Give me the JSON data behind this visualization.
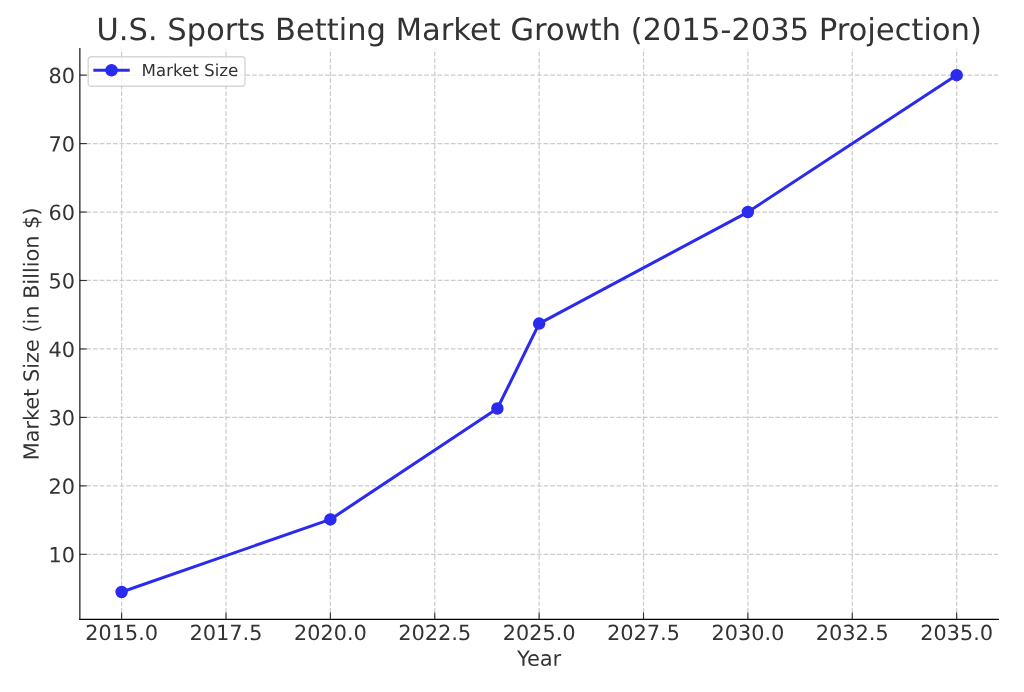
{
  "chart_data": {
    "type": "line",
    "title": "U.S. Sports Betting Market Growth (2015-2035 Projection)",
    "xlabel": "Year",
    "ylabel": "Market Size (in Billion $)",
    "x": [
      2015,
      2020,
      2024,
      2025,
      2030,
      2035
    ],
    "series": [
      {
        "name": "Market Size",
        "color": "#2b2bf0",
        "values": [
          4.5,
          15.1,
          31.3,
          43.7,
          60,
          80
        ]
      }
    ],
    "xlim": [
      2014,
      2036
    ],
    "xticks": [
      {
        "value": 2015,
        "label": "2015.0"
      },
      {
        "value": 2017.5,
        "label": "2017.5"
      },
      {
        "value": 2020,
        "label": "2020.0"
      },
      {
        "value": 2022.5,
        "label": "2022.5"
      },
      {
        "value": 2025,
        "label": "2025.0"
      },
      {
        "value": 2027.5,
        "label": "2027.5"
      },
      {
        "value": 2030,
        "label": "2030.0"
      },
      {
        "value": 2032.5,
        "label": "2032.5"
      },
      {
        "value": 2035,
        "label": "2035.0"
      }
    ],
    "ylim": [
      0.5,
      83.9
    ],
    "yticks": [
      10,
      20,
      30,
      40,
      50,
      60,
      70,
      80
    ],
    "grid": true,
    "legend": "top left",
    "marker": "circle",
    "line_style": "solid"
  }
}
